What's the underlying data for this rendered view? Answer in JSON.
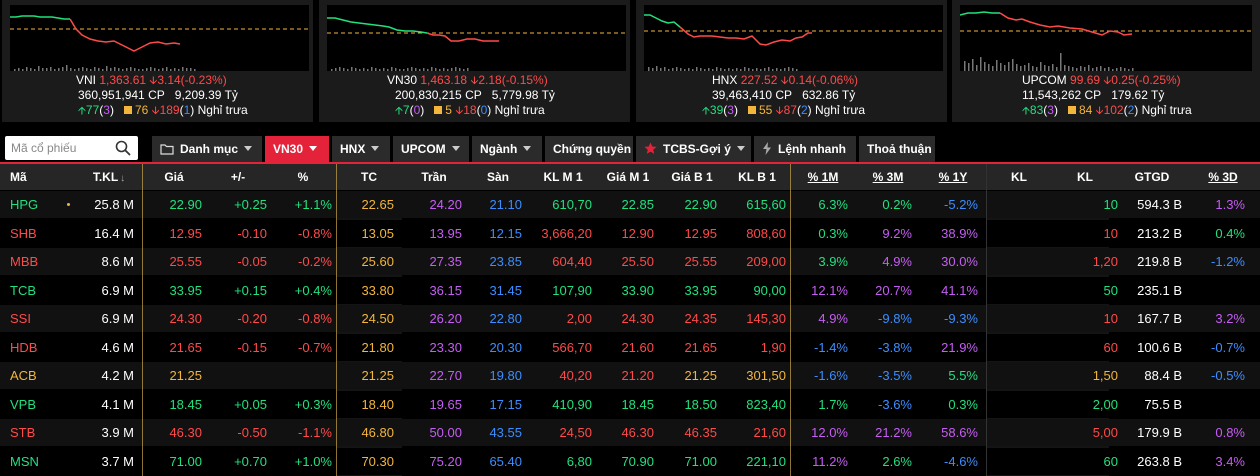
{
  "colors": {
    "up": "#22e07e",
    "down": "#ff4a4a",
    "ref": "#f3b53c",
    "ceil": "#c65df4",
    "floor": "#3c8dff",
    "accent": "#e4233b"
  },
  "indices": [
    {
      "name": "VNI",
      "value": "1,363.61",
      "change": "3.14(-0.23%)",
      "volume": "360,951,941 CP",
      "turnover": "9,209.39 Tỷ",
      "adv": "77",
      "adv_ceil": "3",
      "unch": "76",
      "dec": "189",
      "dec_floor": "1",
      "session": "Nghỉ trưa"
    },
    {
      "name": "VN30",
      "value": "1,463.18",
      "change": "2.18(-0.15%)",
      "volume": "200,830,215 CP",
      "turnover": "5,779.98 Tỷ",
      "adv": "7",
      "adv_ceil": "0",
      "unch": "5",
      "dec": "18",
      "dec_floor": "0",
      "session": "Nghỉ trưa"
    },
    {
      "name": "HNX",
      "value": "227.52",
      "change": "0.14(-0.06%)",
      "volume": "39,463,410 CP",
      "turnover": "632.86 Tỷ",
      "adv": "39",
      "adv_ceil": "3",
      "unch": "55",
      "dec": "87",
      "dec_floor": "2",
      "session": "Nghỉ trưa"
    },
    {
      "name": "UPCOM",
      "value": "99.69",
      "change": "0.25(-0.25%)",
      "volume": "11,543,262 CP",
      "turnover": "179.62 Tỷ",
      "adv": "83",
      "adv_ceil": "3",
      "unch": "84",
      "dec": "102",
      "dec_floor": "2",
      "session": "Nghỉ trưa"
    }
  ],
  "search": {
    "placeholder": "Mã cổ phiếu",
    "icon": "search-icon"
  },
  "tabs": [
    {
      "label": "Danh mục",
      "icon": "folder-icon"
    },
    {
      "label": "VN30"
    },
    {
      "label": "HNX"
    },
    {
      "label": "UPCOM"
    },
    {
      "label": "Ngành"
    },
    {
      "label": "Chứng quyền"
    },
    {
      "label": "TCBS-Gợi ý",
      "icon": "star-icon"
    },
    {
      "label": "Lệnh nhanh",
      "icon": "lightning-icon"
    },
    {
      "label": "Thoả thuận"
    }
  ],
  "active_tab": "VN30",
  "table": {
    "headers": [
      "Mã",
      "T.KL",
      "Giá",
      "+/-",
      "%",
      "TC",
      "Trần",
      "Sàn",
      "KL M 1",
      "Giá M 1",
      "Giá B 1",
      "KL B 1",
      "% 1M",
      "% 3M",
      "% 1Y",
      "KL",
      "KL",
      "GTGD",
      "% 3D"
    ],
    "rows": [
      {
        "sym": "HPG",
        "tkl": "25.8 M",
        "gia": "22.90",
        "chg": "+0.25",
        "pct": "+1.1%",
        "tc": "22.65",
        "tran": "24.20",
        "san": "21.10",
        "klm1": "610,70",
        "giam1": "22.85",
        "giab1": "22.90",
        "klb1": "615,60",
        "p1m": "6.3%",
        "p3m": "0.2%",
        "p1y": "-5.2%",
        "kl": "10",
        "gtgd": "594.3 B",
        "p3d": "1.3%",
        "c": "up",
        "c1m": "up",
        "c3m": "up",
        "c1y": "floor",
        "c3d": "ceil",
        "dot": true
      },
      {
        "sym": "SHB",
        "tkl": "16.4 M",
        "gia": "12.95",
        "chg": "-0.10",
        "pct": "-0.8%",
        "tc": "13.05",
        "tran": "13.95",
        "san": "12.15",
        "klm1": "3,666,20",
        "giam1": "12.90",
        "giab1": "12.95",
        "klb1": "808,60",
        "p1m": "0.3%",
        "p3m": "9.2%",
        "p1y": "38.9%",
        "kl": "10",
        "gtgd": "213.2 B",
        "p3d": "0.4%",
        "c": "down",
        "c1m": "up",
        "c3m": "ceil",
        "c1y": "ceil",
        "c3d": "up"
      },
      {
        "sym": "MBB",
        "tkl": "8.6 M",
        "gia": "25.55",
        "chg": "-0.05",
        "pct": "-0.2%",
        "tc": "25.60",
        "tran": "27.35",
        "san": "23.85",
        "klm1": "604,40",
        "giam1": "25.50",
        "giab1": "25.55",
        "klb1": "209,00",
        "p1m": "3.9%",
        "p3m": "4.9%",
        "p1y": "30.0%",
        "kl": "1,20",
        "gtgd": "219.8 B",
        "p3d": "-1.2%",
        "c": "down",
        "c1m": "up",
        "c3m": "ceil",
        "c1y": "ceil",
        "c3d": "floor"
      },
      {
        "sym": "TCB",
        "tkl": "6.9 M",
        "gia": "33.95",
        "chg": "+0.15",
        "pct": "+0.4%",
        "tc": "33.80",
        "tran": "36.15",
        "san": "31.45",
        "klm1": "107,90",
        "giam1": "33.90",
        "giab1": "33.95",
        "klb1": "90,00",
        "p1m": "12.1%",
        "p3m": "20.7%",
        "p1y": "41.1%",
        "kl": "50",
        "gtgd": "235.1 B",
        "p3d": "",
        "c": "up",
        "c1m": "ceil",
        "c3m": "ceil",
        "c1y": "ceil",
        "c3d": "up"
      },
      {
        "sym": "SSI",
        "tkl": "6.9 M",
        "gia": "24.30",
        "chg": "-0.20",
        "pct": "-0.8%",
        "tc": "24.50",
        "tran": "26.20",
        "san": "22.80",
        "klm1": "2,00",
        "giam1": "24.30",
        "giab1": "24.35",
        "klb1": "145,30",
        "p1m": "4.9%",
        "p3m": "-9.8%",
        "p1y": "-9.3%",
        "kl": "10",
        "gtgd": "167.7 B",
        "p3d": "3.2%",
        "c": "down",
        "c1m": "ceil",
        "c3m": "floor",
        "c1y": "floor",
        "c3d": "ceil"
      },
      {
        "sym": "HDB",
        "tkl": "4.6 M",
        "gia": "21.65",
        "chg": "-0.15",
        "pct": "-0.7%",
        "tc": "21.80",
        "tran": "23.30",
        "san": "20.30",
        "klm1": "566,70",
        "giam1": "21.60",
        "giab1": "21.65",
        "klb1": "1,90",
        "p1m": "-1.4%",
        "p3m": "-3.8%",
        "p1y": "21.9%",
        "kl": "60",
        "gtgd": "100.6 B",
        "p3d": "-0.7%",
        "c": "down",
        "c1m": "floor",
        "c3m": "floor",
        "c1y": "ceil",
        "c3d": "floor"
      },
      {
        "sym": "ACB",
        "tkl": "4.2 M",
        "gia": "21.25",
        "chg": "",
        "pct": "",
        "tc": "21.25",
        "tran": "22.70",
        "san": "19.80",
        "klm1": "40,20",
        "giam1": "21.20",
        "giab1": "21.25",
        "klb1": "301,50",
        "p1m": "-1.6%",
        "p3m": "-3.5%",
        "p1y": "5.5%",
        "kl": "1,50",
        "gtgd": "88.4 B",
        "p3d": "-0.5%",
        "c": "ref",
        "c1m": "floor",
        "c3m": "floor",
        "c1y": "up",
        "c3d": "floor"
      },
      {
        "sym": "VPB",
        "tkl": "4.1 M",
        "gia": "18.45",
        "chg": "+0.05",
        "pct": "+0.3%",
        "tc": "18.40",
        "tran": "19.65",
        "san": "17.15",
        "klm1": "410,90",
        "giam1": "18.45",
        "giab1": "18.50",
        "klb1": "823,40",
        "p1m": "1.7%",
        "p3m": "-3.6%",
        "p1y": "0.3%",
        "kl": "2,00",
        "gtgd": "75.5 B",
        "p3d": "",
        "c": "up",
        "c1m": "up",
        "c3m": "floor",
        "c1y": "up",
        "c3d": "up"
      },
      {
        "sym": "STB",
        "tkl": "3.9 M",
        "gia": "46.30",
        "chg": "-0.50",
        "pct": "-1.1%",
        "tc": "46.80",
        "tran": "50.00",
        "san": "43.55",
        "klm1": "24,50",
        "giam1": "46.30",
        "giab1": "46.35",
        "klb1": "21,60",
        "p1m": "12.0%",
        "p3m": "21.2%",
        "p1y": "58.6%",
        "kl": "5,00",
        "gtgd": "179.9 B",
        "p3d": "0.8%",
        "c": "down",
        "c1m": "ceil",
        "c3m": "ceil",
        "c1y": "ceil",
        "c3d": "ceil"
      },
      {
        "sym": "MSN",
        "tkl": "3.7 M",
        "gia": "71.00",
        "chg": "+0.70",
        "pct": "+1.0%",
        "tc": "70.30",
        "tran": "75.20",
        "san": "65.40",
        "klm1": "6,80",
        "giam1": "70.90",
        "giab1": "71.00",
        "klb1": "221,10",
        "p1m": "11.2%",
        "p3m": "2.6%",
        "p1y": "-4.6%",
        "kl": "60",
        "gtgd": "263.8 B",
        "p3d": "3.4%",
        "c": "up",
        "c1m": "ceil",
        "c3m": "up",
        "c1y": "floor",
        "c3d": "ceil"
      }
    ]
  }
}
